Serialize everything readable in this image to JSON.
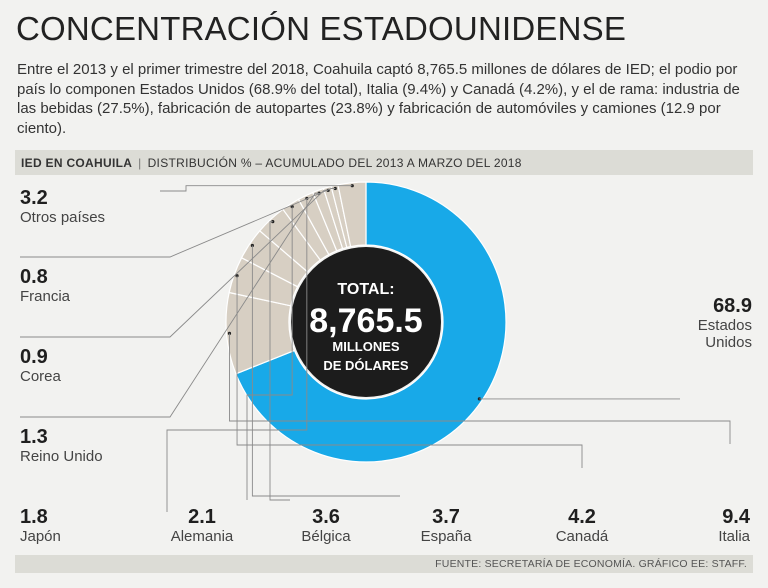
{
  "header": {
    "title": "CONCENTRACIÓN ESTADOUNIDENSE",
    "intro": "Entre el 2013 y el primer trimestre del 2018, Coahuila captó 8,765.5 millones de dólares de IED; el podio por país lo componen Estados Unidos (68.9% del total), Italia (9.4%) y Canadá (4.2%), y el de rama: industria de las bebidas (27.5%), fabricación de autopartes (23.8%) y fabricación de automóviles y camiones (12.9 por ciento)."
  },
  "chart_header": {
    "title": "IED EN COAHUILA",
    "subtitle": "DISTRIBUCIÓN % – ACUMULADO DEL 2013 A MARZO DEL 2018"
  },
  "footer": {
    "source": "FUENTE: SECRETARÍA DE ECONOMÍA. GRÁFICO EE: STAFF."
  },
  "colors": {
    "primary": "#18a9e8",
    "secondary": "#d7cfc3",
    "center": "#1c1c1c"
  },
  "chart_data": {
    "type": "pie",
    "title": "IED EN COAHUILA",
    "unit": "%",
    "center": {
      "line1": "TOTAL:",
      "line2": "8,765.5",
      "line3": "MILLONES",
      "line4": "DE DÓLARES"
    },
    "slices": [
      {
        "label": "Estados Unidos",
        "label_lines": [
          "Estados",
          "Unidos"
        ],
        "value": 68.9,
        "display": "68.9"
      },
      {
        "label": "Italia",
        "label_lines": [
          "Italia"
        ],
        "value": 9.4,
        "display": "9.4"
      },
      {
        "label": "Canadá",
        "label_lines": [
          "Canadá"
        ],
        "value": 4.2,
        "display": "4.2"
      },
      {
        "label": "España",
        "label_lines": [
          "España"
        ],
        "value": 3.7,
        "display": "3.7"
      },
      {
        "label": "Bélgica",
        "label_lines": [
          "Bélgica"
        ],
        "value": 3.6,
        "display": "3.6"
      },
      {
        "label": "Alemania",
        "label_lines": [
          "Alemania"
        ],
        "value": 2.1,
        "display": "2.1"
      },
      {
        "label": "Japón",
        "label_lines": [
          "Japón"
        ],
        "value": 1.8,
        "display": "1.8"
      },
      {
        "label": "Reino Unido",
        "label_lines": [
          "Reino Unido"
        ],
        "value": 1.3,
        "display": "1.3"
      },
      {
        "label": "Corea",
        "label_lines": [
          "Corea"
        ],
        "value": 0.9,
        "display": "0.9"
      },
      {
        "label": "Francia",
        "label_lines": [
          "Francia"
        ],
        "value": 0.8,
        "display": "0.8"
      },
      {
        "label": "Otros países",
        "label_lines": [
          "Otros países"
        ],
        "value": 3.2,
        "display": "3.2"
      }
    ]
  }
}
